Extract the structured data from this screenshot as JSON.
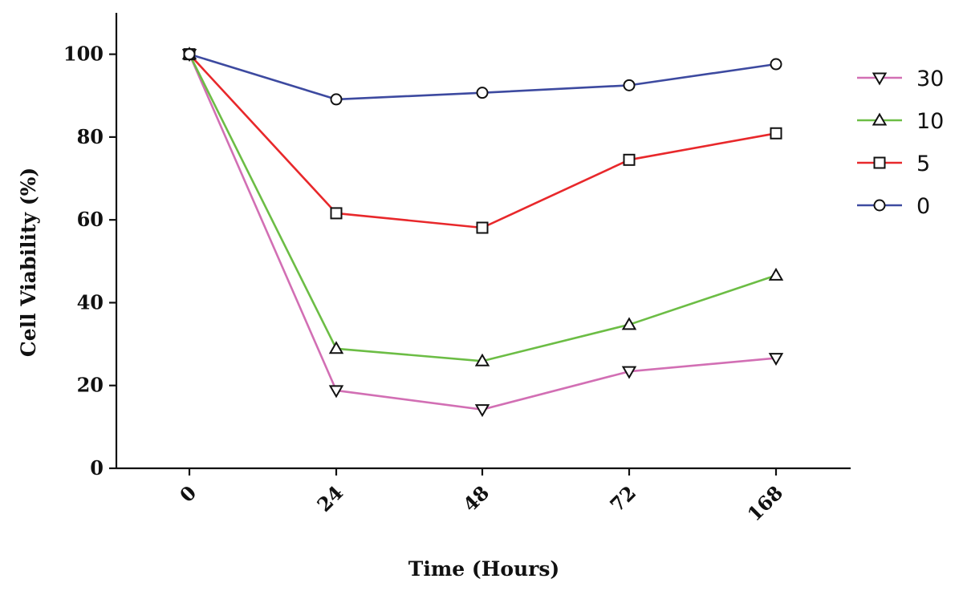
{
  "chart_data": {
    "type": "line",
    "title": "",
    "xlabel": "Time (Hours)",
    "ylabel": "Cell Viability (%)",
    "x": [
      0,
      24,
      48,
      72,
      168
    ],
    "x_tick_labels": [
      "0",
      "24",
      "48",
      "72",
      "168"
    ],
    "ylim": [
      0,
      110
    ],
    "y_ticks": [
      0,
      20,
      40,
      60,
      80,
      100
    ],
    "grid": false,
    "legend_position": "right",
    "series": [
      {
        "name": "30",
        "values": [
          100,
          18.8,
          14.2,
          23.4,
          26.6
        ],
        "color": "#d26fb4",
        "marker": "triangle-down"
      },
      {
        "name": "10",
        "values": [
          100,
          28.9,
          25.9,
          34.7,
          46.6
        ],
        "color": "#6cbd45",
        "marker": "triangle-up"
      },
      {
        "name": "5",
        "values": [
          100,
          61.6,
          58.1,
          74.5,
          80.9
        ],
        "color": "#e8282b",
        "marker": "square"
      },
      {
        "name": "0",
        "values": [
          100,
          89.1,
          90.7,
          92.5,
          97.6
        ],
        "color": "#3d4aa0",
        "marker": "circle"
      }
    ]
  }
}
